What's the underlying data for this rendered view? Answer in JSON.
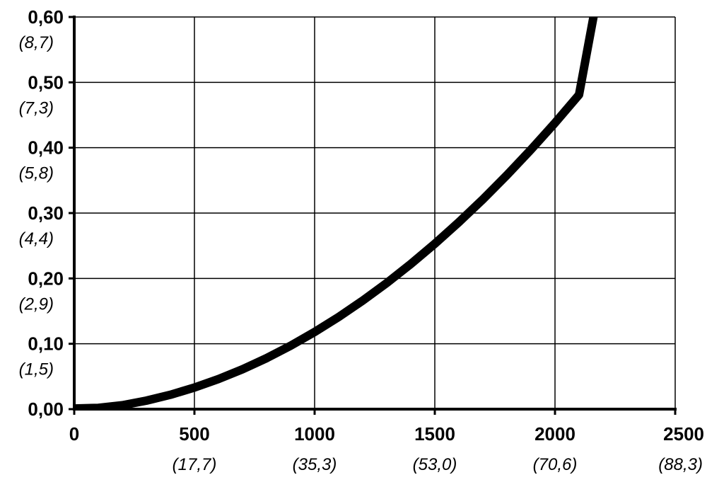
{
  "chart_data": {
    "type": "line",
    "title": "",
    "xlabel": "",
    "ylabel": "",
    "xlim": [
      0,
      2500
    ],
    "ylim": [
      0,
      0.6
    ],
    "grid": true,
    "legend": "none",
    "x_ticks": [
      {
        "value": 0,
        "label": "0",
        "sublabel": ""
      },
      {
        "value": 500,
        "label": "500",
        "sublabel": "(17,7)"
      },
      {
        "value": 1000,
        "label": "1000",
        "sublabel": "(35,3)"
      },
      {
        "value": 1500,
        "label": "1500",
        "sublabel": "(53,0)"
      },
      {
        "value": 2000,
        "label": "2000",
        "sublabel": "(70,6)"
      },
      {
        "value": 2500,
        "label": "2500",
        "sublabel": "(88,3)"
      }
    ],
    "y_ticks": [
      {
        "value": 0.0,
        "label": "0,00",
        "sublabel": ""
      },
      {
        "value": 0.1,
        "label": "0,10",
        "sublabel": "(1,5)"
      },
      {
        "value": 0.2,
        "label": "0,20",
        "sublabel": "(2,9)"
      },
      {
        "value": 0.3,
        "label": "0,30",
        "sublabel": "(4,4)"
      },
      {
        "value": 0.4,
        "label": "0,40",
        "sublabel": "(5,8)"
      },
      {
        "value": 0.5,
        "label": "0,50",
        "sublabel": "(7,3)"
      },
      {
        "value": 0.6,
        "label": "0,60",
        "sublabel": "(8,7)"
      }
    ],
    "series": [
      {
        "color": "#000000",
        "x": [
          0,
          100,
          200,
          300,
          400,
          500,
          600,
          700,
          800,
          900,
          1000,
          1100,
          1200,
          1300,
          1400,
          1500,
          1600,
          1700,
          1800,
          1900,
          2000,
          2100,
          2160
        ],
        "y": [
          0.001,
          0.002,
          0.006,
          0.013,
          0.022,
          0.033,
          0.046,
          0.061,
          0.078,
          0.097,
          0.118,
          0.141,
          0.166,
          0.193,
          0.222,
          0.253,
          0.286,
          0.321,
          0.358,
          0.397,
          0.438,
          0.481,
          0.6
        ]
      }
    ]
  }
}
